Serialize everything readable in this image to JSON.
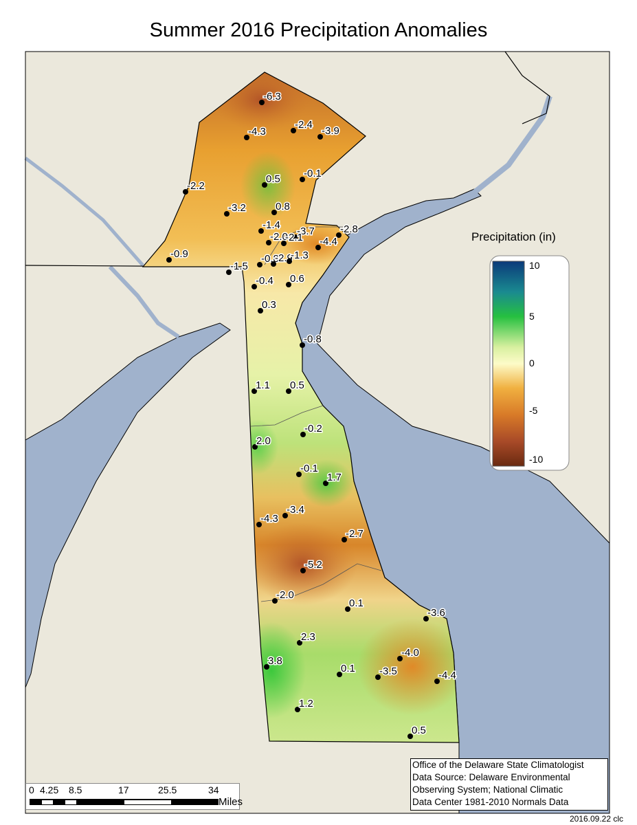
{
  "title": "Summer 2016 Precipitation Anomalies",
  "legend": {
    "title": "Precipitation (in)",
    "ticks": [
      "10",
      "5",
      "0",
      "-5",
      "-10"
    ],
    "colors": [
      "#0b3a7a",
      "#1fb070",
      "#2bc43a",
      "#fdfbc8",
      "#f0a030",
      "#b3502a",
      "#6a2a10"
    ]
  },
  "stations": [
    "-6.3",
    "-4.3",
    "-2.4",
    "-3.9",
    "0.5",
    "-0.1",
    "-2.2",
    "-3.2",
    "0.8",
    "-1.4",
    "-3.7",
    "-2.8",
    "-2.0",
    "-2.1",
    "-4.4",
    "-0.9",
    "-0.8",
    "-2.9",
    "-1.3",
    "-1.5",
    "-0.4",
    "0.6",
    "0.3",
    "-0.8",
    "1.1",
    "0.5",
    "2.0",
    "-0.2",
    "-0.1",
    "1.7",
    "-4.3",
    "-3.4",
    "-2.7",
    "-5.2",
    "-2.0",
    "0.1",
    "-3.6",
    "2.3",
    "3.8",
    "-4.0",
    "0.1",
    "-3.5",
    "-4.4",
    "1.2",
    "0.5"
  ],
  "scale_bar": {
    "ticks": [
      "0",
      "4.25",
      "8.5",
      "17",
      "25.5",
      "34"
    ],
    "unit": "Miles"
  },
  "credit": [
    "Office of the Delaware State Climatologist",
    "Data Source: Delaware Environmental",
    "Observing System; National Climatic",
    "Data Center 1981-2010 Normals Data"
  ],
  "date_stamp": "2016.09.22 clc",
  "colors": {
    "land": "#ebe8dc",
    "water": "#a0b2cc"
  }
}
